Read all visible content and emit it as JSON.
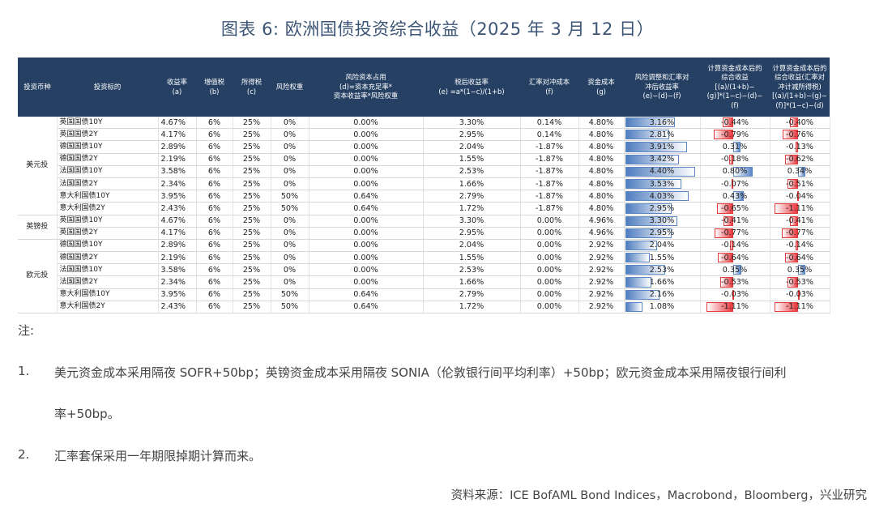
{
  "title": "图表 6:  欧洲国债投资综合收益（2025 年 3 月 12 日）",
  "headers": [
    "投资币种",
    "投资标的",
    "收益率\n(a)",
    "增值税\n(b)",
    "所得税\n(c)",
    "风险权重",
    "风险资本占用\n(d)=资本充足率*\n资本收益率*风险权重",
    "税后收益率\n(e) =a*(1−c)/(1+b)",
    "汇率对冲成本\n(f)",
    "资金成本\n(g)",
    "风险调整和汇率对\n冲后收益率\n(e)−(d)−(f)",
    "计算资金成本后的\n综合收益\n[(a)/(1+b)−\n(g)]*(1−c)−(d)−\n(f)",
    "计算资金成本后的\n综合收益(汇率对\n冲计减所得税)\n[(a)/(1+b)−(g)−\n(f)]*(1−c)−(d)"
  ],
  "groups": [
    {
      "currency": "美元投",
      "rows": [
        {
          "name": "英国国债10Y",
          "a": "4.67%",
          "b": "6%",
          "c": "25%",
          "w": "0%",
          "d": "0.00%",
          "e": "3.30%",
          "f": "0.14%",
          "g": "4.80%",
          "h": "3.16%",
          "h_v": 3.16,
          "i": "-0.44%",
          "i_v": -0.44,
          "j": "-0.40%",
          "j_v": -0.4
        },
        {
          "name": "英国国债2Y",
          "a": "4.17%",
          "b": "6%",
          "c": "25%",
          "w": "0%",
          "d": "0.00%",
          "e": "2.95%",
          "f": "0.14%",
          "g": "4.80%",
          "h": "2.81%",
          "h_v": 2.81,
          "i": "-0.79%",
          "i_v": -0.79,
          "j": "-0.76%",
          "j_v": -0.76
        },
        {
          "name": "德国国债10Y",
          "a": "2.89%",
          "b": "6%",
          "c": "25%",
          "w": "0%",
          "d": "0.00%",
          "e": "2.04%",
          "f": "-1.87%",
          "g": "4.80%",
          "h": "3.91%",
          "h_v": 3.91,
          "i": "0.31%",
          "i_v": 0.31,
          "j": "-0.13%",
          "j_v": -0.13
        },
        {
          "name": "德国国债2Y",
          "a": "2.19%",
          "b": "6%",
          "c": "25%",
          "w": "0%",
          "d": "0.00%",
          "e": "1.55%",
          "f": "-1.87%",
          "g": "4.80%",
          "h": "3.42%",
          "h_v": 3.42,
          "i": "-0.18%",
          "i_v": -0.18,
          "j": "-0.62%",
          "j_v": -0.62
        },
        {
          "name": "法国国债10Y",
          "a": "3.58%",
          "b": "6%",
          "c": "25%",
          "w": "0%",
          "d": "0.00%",
          "e": "2.53%",
          "f": "-1.87%",
          "g": "4.80%",
          "h": "4.40%",
          "h_v": 4.4,
          "i": "0.80%",
          "i_v": 0.8,
          "j": "0.34%",
          "j_v": 0.34
        },
        {
          "name": "法国国债2Y",
          "a": "2.34%",
          "b": "6%",
          "c": "25%",
          "w": "0%",
          "d": "0.00%",
          "e": "1.66%",
          "f": "-1.87%",
          "g": "4.80%",
          "h": "3.53%",
          "h_v": 3.53,
          "i": "-0.07%",
          "i_v": -0.07,
          "j": "-0.51%",
          "j_v": -0.51
        },
        {
          "name": "意大利国债10Y",
          "a": "3.95%",
          "b": "6%",
          "c": "25%",
          "w": "50%",
          "d": "0.64%",
          "e": "2.79%",
          "f": "-1.87%",
          "g": "4.80%",
          "h": "4.03%",
          "h_v": 4.03,
          "i": "0.43%",
          "i_v": 0.43,
          "j": "-0.04%",
          "j_v": -0.04
        },
        {
          "name": "意大利国债2Y",
          "a": "2.43%",
          "b": "6%",
          "c": "25%",
          "w": "50%",
          "d": "0.64%",
          "e": "1.72%",
          "f": "-1.87%",
          "g": "4.80%",
          "h": "2.95%",
          "h_v": 2.95,
          "i": "-0.65%",
          "i_v": -0.65,
          "j": "-1.11%",
          "j_v": -1.11
        }
      ]
    },
    {
      "currency": "英镑投",
      "rows": [
        {
          "name": "英国国债10Y",
          "a": "4.67%",
          "b": "6%",
          "c": "25%",
          "w": "0%",
          "d": "0.00%",
          "e": "3.30%",
          "f": "0.00%",
          "g": "4.96%",
          "h": "3.30%",
          "h_v": 3.3,
          "i": "-0.41%",
          "i_v": -0.41,
          "j": "-0.41%",
          "j_v": -0.41
        },
        {
          "name": "英国国债2Y",
          "a": "4.17%",
          "b": "6%",
          "c": "25%",
          "w": "0%",
          "d": "0.00%",
          "e": "2.95%",
          "f": "0.00%",
          "g": "4.96%",
          "h": "2.95%",
          "h_v": 2.95,
          "i": "-0.77%",
          "i_v": -0.77,
          "j": "-0.77%",
          "j_v": -0.77
        }
      ]
    },
    {
      "currency": "欧元投",
      "rows": [
        {
          "name": "德国国债10Y",
          "a": "2.89%",
          "b": "6%",
          "c": "25%",
          "w": "0%",
          "d": "0.00%",
          "e": "2.04%",
          "f": "0.00%",
          "g": "2.92%",
          "h": "2.04%",
          "h_v": 2.04,
          "i": "-0.14%",
          "i_v": -0.14,
          "j": "-0.14%",
          "j_v": -0.14
        },
        {
          "name": "德国国债2Y",
          "a": "2.19%",
          "b": "6%",
          "c": "25%",
          "w": "0%",
          "d": "0.00%",
          "e": "1.55%",
          "f": "0.00%",
          "g": "2.92%",
          "h": "1.55%",
          "h_v": 1.55,
          "i": "-0.64%",
          "i_v": -0.64,
          "j": "-0.64%",
          "j_v": -0.64
        },
        {
          "name": "法国国债10Y",
          "a": "3.58%",
          "b": "6%",
          "c": "25%",
          "w": "0%",
          "d": "0.00%",
          "e": "2.53%",
          "f": "0.00%",
          "g": "2.92%",
          "h": "2.53%",
          "h_v": 2.53,
          "i": "0.35%",
          "i_v": 0.35,
          "j": "0.35%",
          "j_v": 0.35
        },
        {
          "name": "法国国债2Y",
          "a": "2.34%",
          "b": "6%",
          "c": "25%",
          "w": "0%",
          "d": "0.00%",
          "e": "1.66%",
          "f": "0.00%",
          "g": "2.92%",
          "h": "1.66%",
          "h_v": 1.66,
          "i": "-0.53%",
          "i_v": -0.53,
          "j": "-0.53%",
          "j_v": -0.53
        },
        {
          "name": "意大利国债10Y",
          "a": "3.95%",
          "b": "6%",
          "c": "25%",
          "w": "50%",
          "d": "0.64%",
          "e": "2.79%",
          "f": "0.00%",
          "g": "2.92%",
          "h": "2.16%",
          "h_v": 2.16,
          "i": "-0.03%",
          "i_v": -0.03,
          "j": "-0.03%",
          "j_v": -0.03
        },
        {
          "name": "意大利国债2Y",
          "a": "2.43%",
          "b": "6%",
          "c": "25%",
          "w": "50%",
          "d": "0.64%",
          "e": "1.72%",
          "f": "0.00%",
          "g": "2.92%",
          "h": "1.08%",
          "h_v": 1.08,
          "i": "-1.11%",
          "i_v": -1.11,
          "j": "-1.11%",
          "j_v": -1.11
        }
      ]
    }
  ],
  "notes": {
    "label": "注:",
    "n1_num": "1.",
    "n1_line1": "美元资金成本采用隔夜 SOFR+50bp；英镑资金成本采用隔夜 SONIA（伦敦银行间平均利率）+50bp；欧元资金成本采用隔夜银行间利",
    "n1_line2": "率+50bp。",
    "n2_num": "2.",
    "n2_text": "汇率套保采用一年期限掉期计算而来。"
  },
  "source": "资料来源：ICE BofAML Bond Indices，Macrobond，Bloomberg，兴业研究",
  "colors": {
    "header_bg": "#254063",
    "positive_bar": "#4f7dc0",
    "negative_bar": "#e8373d",
    "title": "#3c5576"
  }
}
